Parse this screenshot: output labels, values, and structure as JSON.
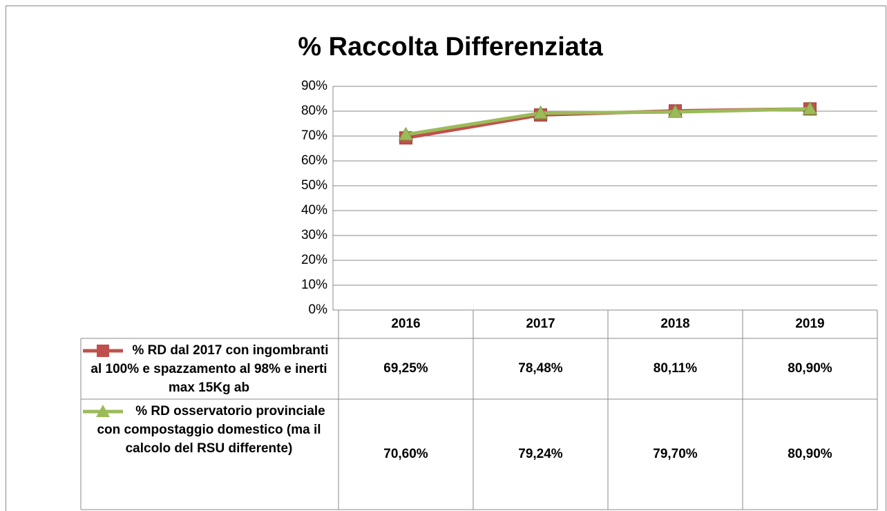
{
  "chart_data": {
    "type": "line",
    "title": "% Raccolta Differenziata",
    "categories": [
      "2016",
      "2017",
      "2018",
      "2019"
    ],
    "series": [
      {
        "name": "% RD dal 2017 con ingombranti al 100% e spazzamento al 98% e inerti max 15Kg ab",
        "color": "#c0504d",
        "marker": "square",
        "values": [
          69.25,
          78.48,
          80.11,
          80.9
        ],
        "value_labels": [
          "69,25%",
          "78,48%",
          "80,11%",
          "80,90%"
        ]
      },
      {
        "name": "% RD osservatorio provinciale con compostaggio domestico (ma il calcolo del RSU differente)",
        "color": "#9bbb59",
        "marker": "triangle",
        "values": [
          70.6,
          79.24,
          79.7,
          80.9
        ],
        "value_labels": [
          "70,60%",
          "79,24%",
          "79,70%",
          "80,90%"
        ]
      }
    ],
    "ylim": [
      0,
      90
    ],
    "yticks": [
      {
        "value": 0,
        "label": "0%"
      },
      {
        "value": 10,
        "label": "10%"
      },
      {
        "value": 20,
        "label": "20%"
      },
      {
        "value": 30,
        "label": "30%"
      },
      {
        "value": 40,
        "label": "40%"
      },
      {
        "value": 50,
        "label": "50%"
      },
      {
        "value": 60,
        "label": "60%"
      },
      {
        "value": 70,
        "label": "70%"
      },
      {
        "value": 80,
        "label": "80%"
      },
      {
        "value": 90,
        "label": "90%"
      }
    ],
    "grid": true
  }
}
